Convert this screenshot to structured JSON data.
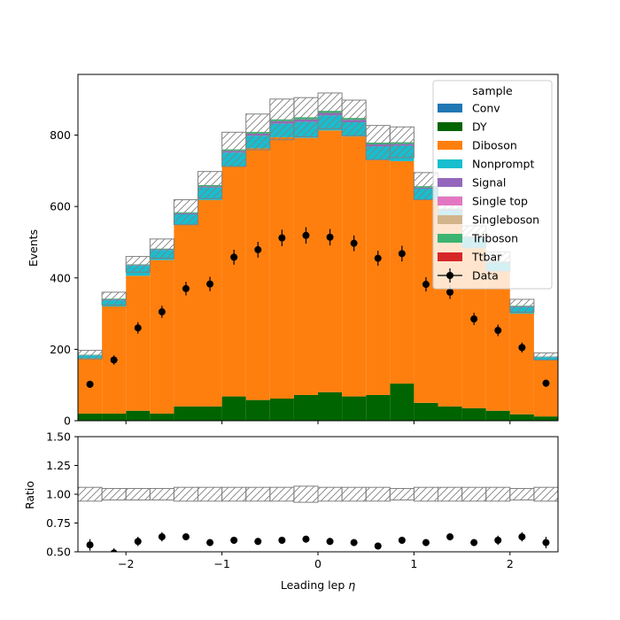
{
  "chart_data": [
    {
      "type": "bar",
      "subtype": "stacked-histogram",
      "title": "",
      "xlabel": "",
      "ylabel": "Events",
      "xlim": [
        -2.5,
        2.5
      ],
      "ylim": [
        0,
        970
      ],
      "yticks": [
        0,
        200,
        400,
        600,
        800
      ],
      "bin_edges": [
        -2.5,
        -2.25,
        -2.0,
        -1.75,
        -1.5,
        -1.25,
        -1.0,
        -0.75,
        -0.5,
        -0.25,
        0.0,
        0.25,
        0.5,
        0.75,
        1.0,
        1.25,
        1.5,
        1.75,
        2.0,
        2.25,
        2.5
      ],
      "series": [
        {
          "name": "Conv",
          "color": "#1f77b4",
          "values": [
            0,
            0,
            0,
            0,
            0,
            0,
            0,
            0,
            0,
            0,
            0,
            0,
            0,
            0,
            0,
            0,
            0,
            0,
            0,
            0
          ]
        },
        {
          "name": "DY",
          "color": "#006400",
          "values": [
            20,
            20,
            28,
            20,
            40,
            40,
            68,
            58,
            62,
            72,
            80,
            68,
            72,
            104,
            50,
            40,
            35,
            28,
            18,
            12
          ]
        },
        {
          "name": "Diboson",
          "color": "#ff7f0e",
          "values": [
            155,
            300,
            378,
            430,
            508,
            578,
            643,
            705,
            732,
            720,
            733,
            728,
            658,
            623,
            568,
            518,
            448,
            392,
            282,
            158
          ]
        },
        {
          "name": "Nonprompt",
          "color": "#17becf",
          "values": [
            8,
            18,
            28,
            28,
            30,
            35,
            40,
            35,
            38,
            45,
            42,
            40,
            38,
            43,
            32,
            30,
            28,
            22,
            18,
            8
          ]
        },
        {
          "name": "Signal",
          "color": "#9467bd",
          "values": [
            1,
            2,
            2,
            2,
            3,
            3,
            5,
            6,
            7,
            7,
            7,
            7,
            6,
            5,
            3,
            3,
            2,
            2,
            2,
            1
          ]
        },
        {
          "name": "Single top",
          "color": "#e377c2",
          "values": [
            0,
            0,
            0,
            0,
            0,
            0,
            0,
            0,
            0,
            0,
            0,
            0,
            0,
            0,
            0,
            0,
            0,
            0,
            0,
            0
          ]
        },
        {
          "name": "Singleboson",
          "color": "#d2b48c",
          "values": [
            0,
            0,
            0,
            0,
            0,
            0,
            0,
            0,
            0,
            0,
            0,
            0,
            0,
            0,
            0,
            0,
            0,
            0,
            0,
            0
          ]
        },
        {
          "name": "Triboson",
          "color": "#3cb371",
          "values": [
            1,
            2,
            2,
            2,
            3,
            4,
            4,
            5,
            5,
            6,
            6,
            5,
            5,
            5,
            4,
            3,
            3,
            2,
            2,
            1
          ]
        },
        {
          "name": "Ttbar",
          "color": "#d62728",
          "values": [
            0,
            0,
            0,
            0,
            0,
            0,
            0,
            0,
            0,
            0,
            0,
            0,
            0,
            0,
            0,
            0,
            0,
            0,
            0,
            0
          ]
        }
      ],
      "uncertainty": [
        12,
        18,
        22,
        27,
        35,
        38,
        48,
        50,
        57,
        55,
        50,
        50,
        48,
        43,
        38,
        35,
        30,
        27,
        18,
        10
      ],
      "data_points": {
        "name": "Data",
        "values": [
          102,
          170,
          260,
          305,
          370,
          383,
          458,
          479,
          512,
          519,
          514,
          497,
          455,
          468,
          382,
          360,
          285,
          253,
          205,
          105
        ],
        "errors": [
          10,
          13,
          16,
          17,
          19,
          20,
          21,
          22,
          23,
          23,
          23,
          22,
          21,
          22,
          20,
          19,
          17,
          16,
          14,
          10
        ]
      },
      "legend": {
        "title": "sample",
        "placement": "top-right"
      }
    },
    {
      "type": "scatter",
      "subtype": "ratio",
      "title": "",
      "xlabel": "Leading lep η",
      "ylabel": "Ratio",
      "xlim": [
        -2.5,
        2.5
      ],
      "ylim": [
        0.5,
        1.5
      ],
      "xticks": [
        -2,
        -1,
        0,
        1,
        2
      ],
      "yticks": [
        0.5,
        0.75,
        1.0,
        1.25,
        1.5
      ],
      "ratio_values": [
        0.56,
        0.49,
        0.59,
        0.63,
        0.63,
        0.58,
        0.6,
        0.59,
        0.6,
        0.61,
        0.59,
        0.58,
        0.55,
        0.6,
        0.58,
        0.63,
        0.58,
        0.6,
        0.63,
        0.58
      ],
      "ratio_errors": [
        0.05,
        0.04,
        0.04,
        0.04,
        0.03,
        0.03,
        0.03,
        0.03,
        0.03,
        0.03,
        0.03,
        0.03,
        0.03,
        0.03,
        0.03,
        0.03,
        0.03,
        0.04,
        0.04,
        0.05
      ],
      "band_halfwidth": [
        0.06,
        0.05,
        0.05,
        0.05,
        0.06,
        0.06,
        0.06,
        0.06,
        0.06,
        0.07,
        0.06,
        0.06,
        0.06,
        0.05,
        0.06,
        0.06,
        0.06,
        0.06,
        0.05,
        0.06
      ]
    }
  ],
  "tick_labels": {
    "main_y": [
      "0",
      "200",
      "400",
      "600",
      "800"
    ],
    "ratio_y": [
      "0.50",
      "0.75",
      "1.00",
      "1.25",
      "1.50"
    ],
    "x": [
      "−2",
      "−1",
      "0",
      "1",
      "2"
    ]
  },
  "axis_labels": {
    "main_y": "Events",
    "ratio_y": "Ratio",
    "x_text": "Leading lep ",
    "x_symbol": "η"
  },
  "colors": {
    "uncertainty_hatch": "#808080",
    "data_marker": "#000000"
  }
}
